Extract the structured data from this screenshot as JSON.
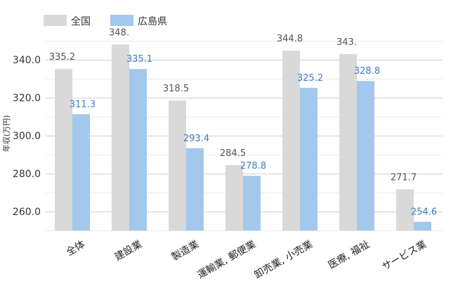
{
  "chart_data": {
    "type": "bar",
    "ylabel": "年収(万円)",
    "categories": [
      "全体",
      "建設業",
      "製造業",
      "運輸業, 郵便業",
      "卸売業, 小売業",
      "医療, 福祉",
      "サービス業"
    ],
    "series": [
      {
        "name": "全国",
        "color": "#d9d9d9",
        "label_color": "#555555",
        "values": [
          335.2,
          348.0,
          318.5,
          284.5,
          344.8,
          343.0,
          271.7
        ],
        "labels": [
          "335.2",
          "348.",
          "318.5",
          "284.5",
          "344.8",
          "343.",
          "271.7"
        ]
      },
      {
        "name": "広島県",
        "color": "#a3c8ec",
        "label_color": "#3b7fc4",
        "values": [
          311.3,
          335.1,
          293.4,
          278.8,
          325.2,
          328.8,
          254.6
        ],
        "labels": [
          "311.3",
          "335.1",
          "293.4",
          "278.8",
          "325.2",
          "328.8",
          "254.6"
        ]
      }
    ],
    "yticks": [
      "260.0",
      "280.0",
      "300.0",
      "320.0",
      "340.0"
    ],
    "ylim": [
      250,
      350
    ],
    "grid": true,
    "legend_position": "top-left"
  }
}
